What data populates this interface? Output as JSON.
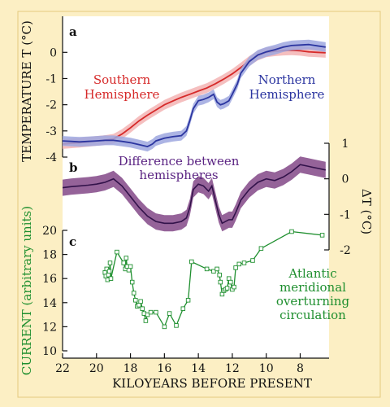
{
  "figure": {
    "xlabel": "KILOYEARS BEFORE PRESENT",
    "x_ticks": [
      22,
      20,
      18,
      16,
      14,
      12,
      10,
      8
    ],
    "xlim": [
      22,
      6.3
    ],
    "colors": {
      "background": "#fcefc4",
      "plot_bg": "#ffffff",
      "south": "#d62a2a",
      "south_band": "#f3b4b4",
      "north": "#2b35a0",
      "north_band": "#9ea7df",
      "diff": "#32124a",
      "diff_band": "#8f5b94",
      "diff_text": "#5b2483",
      "amoc": "#1f8f2f"
    }
  },
  "chart_data": [
    {
      "type": "line",
      "panel": "a",
      "ylabel": "TEMPERATURE T (°C)",
      "y_ticks": [
        0,
        -1,
        -2,
        -3,
        -4
      ],
      "ylim": [
        -4,
        0.6
      ],
      "series": [
        {
          "name": "Southern Hemisphere",
          "label_lines": [
            "Southern",
            "Hemisphere"
          ],
          "color_key": "south",
          "x": [
            22,
            21,
            20,
            19.5,
            19,
            18.5,
            18,
            17.5,
            17,
            16.5,
            16,
            15.5,
            15,
            14.5,
            14,
            13.5,
            13,
            12.5,
            12,
            11.5,
            11,
            10.5,
            10,
            9.5,
            9,
            8.5,
            8,
            7.5,
            7,
            6.5
          ],
          "values": [
            -3.5,
            -3.45,
            -3.38,
            -3.35,
            -3.3,
            -3.12,
            -2.88,
            -2.62,
            -2.4,
            -2.2,
            -2.0,
            -1.86,
            -1.72,
            -1.6,
            -1.48,
            -1.36,
            -1.2,
            -1.02,
            -0.82,
            -0.58,
            -0.33,
            -0.12,
            0.0,
            0.04,
            0.07,
            0.08,
            0.06,
            0.02,
            0.0,
            -0.02
          ]
        },
        {
          "name": "Northern Hemisphere",
          "label_lines": [
            "Northern",
            "Hemisphere"
          ],
          "color_key": "north",
          "x": [
            22,
            21.5,
            21,
            20.5,
            20,
            19.5,
            19,
            18.5,
            18,
            17.5,
            17,
            16.7,
            16.5,
            16,
            15.5,
            15,
            14.7,
            14.5,
            14.3,
            14,
            13.7,
            13.4,
            13.1,
            12.9,
            12.7,
            12.5,
            12.2,
            12,
            11.7,
            11.5,
            11,
            10.5,
            10,
            9.5,
            9,
            8.5,
            8,
            7.5,
            7,
            6.5
          ],
          "values": [
            -3.38,
            -3.4,
            -3.42,
            -3.4,
            -3.38,
            -3.36,
            -3.36,
            -3.4,
            -3.45,
            -3.52,
            -3.6,
            -3.5,
            -3.38,
            -3.28,
            -3.22,
            -3.18,
            -3.0,
            -2.6,
            -2.15,
            -1.85,
            -1.8,
            -1.72,
            -1.6,
            -1.9,
            -2.0,
            -1.96,
            -1.85,
            -1.6,
            -1.2,
            -0.8,
            -0.35,
            -0.1,
            0.02,
            0.1,
            0.2,
            0.26,
            0.28,
            0.3,
            0.25,
            0.2
          ]
        }
      ]
    },
    {
      "type": "line",
      "panel": "b",
      "ylabel": "ΔT (°C)",
      "y_ticks": [
        1,
        0,
        -1,
        -2
      ],
      "ylim": [
        -2,
        1
      ],
      "series": [
        {
          "name": "Difference between hemispheres",
          "label_lines": [
            "Difference between",
            "hemispheres"
          ],
          "color_key": "diff",
          "x": [
            22,
            21.5,
            21,
            20.5,
            20,
            19.5,
            19,
            18.5,
            18,
            17.5,
            17,
            16.5,
            16,
            15.5,
            15,
            14.7,
            14.5,
            14.3,
            14,
            13.7,
            13.4,
            13.2,
            13,
            12.8,
            12.6,
            12.4,
            12.2,
            12,
            11.8,
            11.5,
            11,
            10.5,
            10,
            9.5,
            9,
            8.5,
            8,
            7.5,
            7,
            6.5
          ],
          "values": [
            -0.25,
            -0.22,
            -0.2,
            -0.18,
            -0.15,
            -0.1,
            0.0,
            -0.2,
            -0.5,
            -0.8,
            -1.05,
            -1.2,
            -1.25,
            -1.25,
            -1.2,
            -1.1,
            -0.8,
            -0.3,
            -0.15,
            -0.2,
            -0.35,
            -0.2,
            -0.6,
            -1.0,
            -1.25,
            -1.2,
            -1.15,
            -1.15,
            -0.95,
            -0.6,
            -0.3,
            -0.1,
            0.0,
            -0.05,
            0.05,
            0.2,
            0.4,
            0.35,
            0.3,
            0.25
          ]
        }
      ]
    },
    {
      "type": "line",
      "panel": "c",
      "ylabel": "CURRENT (arbitrary units)",
      "y_ticks": [
        20,
        18,
        16,
        14,
        12,
        10
      ],
      "ylim": [
        10,
        20
      ],
      "series": [
        {
          "name": "Atlantic meridional overturning circulation",
          "label_lines": [
            "Atlantic",
            "meridional",
            "overturning",
            "circulation"
          ],
          "color_key": "amoc",
          "markers": "open-square",
          "x": [
            19.5,
            19.45,
            19.4,
            19.35,
            19.3,
            19.25,
            19.2,
            19.15,
            18.8,
            18.4,
            18.3,
            18.25,
            18.2,
            18.1,
            18.0,
            17.9,
            17.8,
            17.7,
            17.6,
            17.5,
            17.4,
            17.3,
            17.2,
            17.1,
            17.0,
            16.8,
            16.5,
            16.0,
            15.7,
            15.3,
            14.9,
            14.6,
            14.4,
            13.5,
            13.1,
            12.9,
            12.75,
            12.7,
            12.6,
            12.5,
            12.4,
            12.3,
            12.2,
            12.1,
            12.0,
            11.9,
            11.8,
            11.6,
            11.3,
            10.8,
            10.3,
            8.5,
            6.7
          ],
          "values": [
            16.5,
            16.2,
            16.8,
            15.9,
            16.3,
            16.6,
            17.3,
            16.0,
            18.2,
            17.3,
            16.8,
            17.7,
            17.0,
            16.7,
            17.0,
            15.7,
            14.8,
            14.2,
            13.7,
            13.8,
            14.1,
            13.5,
            13.1,
            12.5,
            13.0,
            13.2,
            13.2,
            12.0,
            13.1,
            12.1,
            13.5,
            14.2,
            17.4,
            16.8,
            16.6,
            16.8,
            16.3,
            15.7,
            14.7,
            15.0,
            15.1,
            15.2,
            16.0,
            15.7,
            15.1,
            15.3,
            16.9,
            17.2,
            17.3,
            17.5,
            18.5,
            19.9,
            19.6
          ]
        }
      ]
    }
  ]
}
